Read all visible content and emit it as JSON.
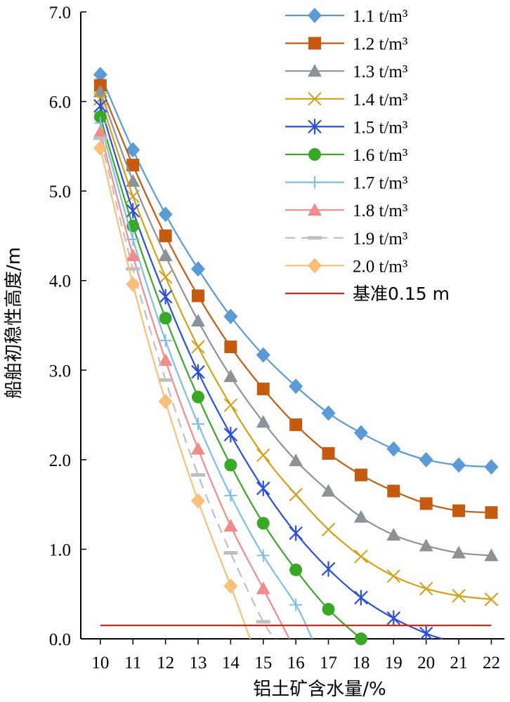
{
  "chart_data": {
    "type": "line",
    "xlabel": "铝土矿含水量/%",
    "ylabel": "船舶初稳性高度/m",
    "xlim": [
      10,
      22
    ],
    "ylim": [
      0,
      7
    ],
    "x_ticks": [
      "10",
      "11",
      "12",
      "13",
      "14",
      "15",
      "16",
      "17",
      "18",
      "19",
      "20",
      "21",
      "22"
    ],
    "y_ticks": [
      "0.0",
      "1.0",
      "2.0",
      "3.0",
      "4.0",
      "5.0",
      "6.0",
      "7.0"
    ],
    "grid": false,
    "legend_position": "top-right",
    "series": [
      {
        "name": "1.1 t/m³",
        "color": "#5b9bd5",
        "marker": "diamond",
        "dash": "",
        "x": [
          10,
          11,
          12,
          13,
          14,
          15,
          16,
          17,
          18,
          19,
          20,
          21,
          22
        ],
        "y": [
          6.3,
          5.46,
          4.74,
          4.13,
          3.6,
          3.17,
          2.82,
          2.52,
          2.3,
          2.12,
          2.0,
          1.94,
          1.92
        ]
      },
      {
        "name": "1.2 t/m³",
        "color": "#c55a11",
        "marker": "square",
        "dash": "",
        "x": [
          10,
          11,
          12,
          13,
          14,
          15,
          16,
          17,
          18,
          19,
          20,
          21,
          22
        ],
        "y": [
          6.18,
          5.29,
          4.5,
          3.83,
          3.26,
          2.79,
          2.39,
          2.07,
          1.83,
          1.65,
          1.51,
          1.43,
          1.41
        ]
      },
      {
        "name": "1.3 t/m³",
        "color": "#8c9296",
        "marker": "triangle",
        "dash": "",
        "x": [
          10,
          11,
          12,
          13,
          14,
          15,
          16,
          17,
          18,
          19,
          20,
          21,
          22
        ],
        "y": [
          6.11,
          5.11,
          4.28,
          3.55,
          2.93,
          2.42,
          1.99,
          1.65,
          1.36,
          1.16,
          1.04,
          0.96,
          0.93
        ]
      },
      {
        "name": "1.4 t/m³",
        "color": "#d4a017",
        "marker": "x",
        "dash": "",
        "x": [
          10,
          11,
          12,
          13,
          14,
          15,
          16,
          17,
          18,
          19,
          20,
          21,
          22
        ],
        "y": [
          6.03,
          4.94,
          4.04,
          3.26,
          2.61,
          2.05,
          1.61,
          1.22,
          0.92,
          0.7,
          0.56,
          0.48,
          0.44
        ]
      },
      {
        "name": "1.5 t/m³",
        "color": "#2b50d6",
        "marker": "star",
        "dash": "",
        "x": [
          10,
          11,
          12,
          13,
          14,
          15,
          16,
          17,
          18,
          19,
          20,
          20.5
        ],
        "y": [
          5.95,
          4.78,
          3.82,
          2.98,
          2.28,
          1.68,
          1.18,
          0.78,
          0.46,
          0.23,
          0.06,
          0.0
        ]
      },
      {
        "name": "1.6 t/m³",
        "color": "#3aa827",
        "marker": "circle",
        "dash": "",
        "x": [
          10,
          11,
          12,
          13,
          14,
          15,
          16,
          17,
          18
        ],
        "y": [
          5.83,
          4.61,
          3.58,
          2.7,
          1.94,
          1.29,
          0.77,
          0.33,
          0.0
        ]
      },
      {
        "name": "1.7 t/m³",
        "color": "#7fbfe6",
        "marker": "plus",
        "dash": "",
        "x": [
          10,
          11,
          12,
          13,
          14,
          15,
          16,
          16.5
        ],
        "y": [
          5.76,
          4.46,
          3.33,
          2.4,
          1.6,
          0.93,
          0.38,
          0.0
        ]
      },
      {
        "name": "1.8 t/m³",
        "color": "#f08c8c",
        "marker": "triangle",
        "dash": "",
        "x": [
          10,
          11,
          12,
          13,
          14,
          15,
          15.8
        ],
        "y": [
          5.66,
          4.28,
          3.11,
          2.12,
          1.26,
          0.56,
          0.0
        ]
      },
      {
        "name": "1.9 t/m³",
        "color": "#bfbfbf",
        "marker": "dash",
        "dash": "14,9",
        "x": [
          10,
          11,
          12,
          13,
          14,
          15,
          15.4
        ],
        "y": [
          5.59,
          4.13,
          2.89,
          1.83,
          0.96,
          0.19,
          0.0
        ]
      },
      {
        "name": "2.0 t/m³",
        "color": "#f8c07a",
        "marker": "diamond",
        "dash": "",
        "x": [
          10,
          11,
          12,
          13,
          14,
          14.6
        ],
        "y": [
          5.48,
          3.96,
          2.65,
          1.54,
          0.59,
          0.0
        ]
      },
      {
        "name": "基准0.15 m",
        "color": "#e0251f",
        "marker": "none",
        "dash": "",
        "x": [
          10,
          22
        ],
        "y": [
          0.15,
          0.15
        ]
      }
    ]
  }
}
